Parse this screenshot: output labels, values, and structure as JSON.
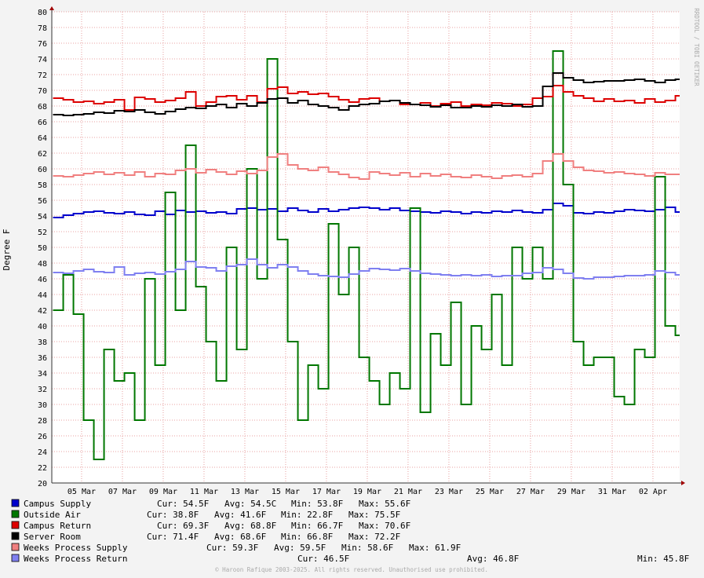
{
  "chart_data": {
    "type": "line",
    "step": true,
    "y_label": "Degree F",
    "watermark": "RRDTOOL / TOBI OETIKER",
    "footer": "© Haroon Rafique 2003-2025. All rights reserved. Unauthorised use prohibited.",
    "xlim": [
      3.54,
      34.31
    ],
    "ylim": [
      20,
      80
    ],
    "yticks": [
      20,
      22,
      24,
      26,
      28,
      30,
      32,
      34,
      36,
      38,
      40,
      42,
      44,
      46,
      48,
      50,
      52,
      54,
      56,
      58,
      60,
      62,
      64,
      66,
      68,
      70,
      72,
      74,
      76,
      78,
      80
    ],
    "xticks": [
      {
        "value": 5,
        "label": "05 Mar"
      },
      {
        "value": 7,
        "label": "07 Mar"
      },
      {
        "value": 9,
        "label": "09 Mar"
      },
      {
        "value": 11,
        "label": "11 Mar"
      },
      {
        "value": 13,
        "label": "13 Mar"
      },
      {
        "value": 15,
        "label": "15 Mar"
      },
      {
        "value": 17,
        "label": "17 Mar"
      },
      {
        "value": 19,
        "label": "19 Mar"
      },
      {
        "value": 21,
        "label": "21 Mar"
      },
      {
        "value": 23,
        "label": "23 Mar"
      },
      {
        "value": 25,
        "label": "25 Mar"
      },
      {
        "value": 27,
        "label": "27 Mar"
      },
      {
        "value": 29,
        "label": "29 Mar"
      },
      {
        "value": 31,
        "label": "31 Mar"
      },
      {
        "value": 33,
        "label": "02 Apr"
      }
    ],
    "grid": true,
    "x": [
      3.6,
      4.1,
      4.6,
      5.1,
      5.6,
      6.1,
      6.6,
      7.1,
      7.6,
      8.1,
      8.6,
      9.1,
      9.6,
      10.1,
      10.6,
      11.1,
      11.6,
      12.1,
      12.6,
      13.1,
      13.6,
      14.1,
      14.6,
      15.1,
      15.6,
      16.1,
      16.6,
      17.1,
      17.6,
      18.1,
      18.6,
      19.1,
      19.6,
      20.1,
      20.6,
      21.1,
      21.6,
      22.1,
      22.6,
      23.1,
      23.6,
      24.1,
      24.6,
      25.1,
      25.6,
      26.1,
      26.6,
      27.1,
      27.6,
      28.1,
      28.6,
      29.1,
      29.6,
      30.1,
      30.6,
      31.1,
      31.6,
      32.1,
      32.6,
      33.1,
      33.6,
      34.1
    ],
    "series": [
      {
        "name": "Campus Supply",
        "color": "#0000cc",
        "stats": [
          "Cur: 54.5F",
          "Avg: 54.5C",
          "Min: 53.8F",
          "Max: 55.6F"
        ],
        "values": [
          53.8,
          54.1,
          54.3,
          54.5,
          54.6,
          54.4,
          54.3,
          54.5,
          54.2,
          54.1,
          54.6,
          54.2,
          54.7,
          54.5,
          54.6,
          54.4,
          54.5,
          54.3,
          54.9,
          55.0,
          54.8,
          54.9,
          54.6,
          55.0,
          54.7,
          54.5,
          54.9,
          54.6,
          54.8,
          55.0,
          55.1,
          55.0,
          54.8,
          55.0,
          54.7,
          54.6,
          54.5,
          54.4,
          54.6,
          54.5,
          54.3,
          54.5,
          54.4,
          54.6,
          54.5,
          54.7,
          54.5,
          54.4,
          54.8,
          55.6,
          55.3,
          54.4,
          54.3,
          54.5,
          54.4,
          54.6,
          54.8,
          54.7,
          54.6,
          54.8,
          55.1,
          54.5
        ]
      },
      {
        "name": "Outside Air",
        "color": "#007700",
        "stats": [
          "Cur: 38.8F",
          "Avg: 41.6F",
          "Min: 22.8F",
          "Max: 75.5F"
        ],
        "values": [
          42,
          46.5,
          41.5,
          28,
          23,
          37,
          33,
          34,
          28,
          46,
          35,
          57,
          42,
          63,
          45,
          38,
          33,
          50,
          37,
          60,
          46,
          74,
          51,
          38,
          28,
          35,
          32,
          53,
          44,
          50,
          36,
          33,
          30,
          34,
          32,
          55,
          29,
          39,
          35,
          43,
          30,
          40,
          37,
          44,
          35,
          50,
          46,
          50,
          46,
          75,
          58,
          38,
          35,
          36,
          36,
          31,
          30,
          37,
          36,
          59,
          40,
          38.8
        ]
      },
      {
        "name": "Campus Return",
        "color": "#dd0000",
        "stats": [
          "Cur: 69.3F",
          "Avg: 68.8F",
          "Min: 66.7F",
          "Max: 70.6F"
        ],
        "values": [
          69,
          68.8,
          68.5,
          68.6,
          68.3,
          68.5,
          68.8,
          67.5,
          69.1,
          68.9,
          68.5,
          68.7,
          69.0,
          69.8,
          68.0,
          68.5,
          69.2,
          69.3,
          68.8,
          69.3,
          68.5,
          70.2,
          70.4,
          69.6,
          69.8,
          69.5,
          69.6,
          69.2,
          68.8,
          68.5,
          68.9,
          69.0,
          68.6,
          68.7,
          68.2,
          68.2,
          68.4,
          68.0,
          68.3,
          68.5,
          68.0,
          68.2,
          68.1,
          68.4,
          68.3,
          68.0,
          68.2,
          69.0,
          69.2,
          70.6,
          69.8,
          69.3,
          69.0,
          68.6,
          68.9,
          68.6,
          68.7,
          68.4,
          68.9,
          68.5,
          68.7,
          69.3
        ]
      },
      {
        "name": "Server Room",
        "color": "#000000",
        "stats": [
          "Cur: 71.4F",
          "Avg: 68.6F",
          "Min: 66.8F",
          "Max: 72.2F"
        ],
        "values": [
          66.9,
          66.8,
          66.9,
          67.0,
          67.2,
          67.1,
          67.4,
          67.3,
          67.5,
          67.2,
          67.0,
          67.3,
          67.6,
          67.8,
          67.7,
          68.0,
          68.2,
          67.8,
          68.3,
          68.0,
          68.4,
          68.9,
          69.0,
          68.4,
          68.7,
          68.2,
          68.0,
          67.8,
          67.5,
          68.0,
          68.2,
          68.3,
          68.6,
          68.7,
          68.4,
          68.2,
          68.1,
          67.9,
          68.1,
          67.8,
          67.8,
          68.0,
          67.9,
          68.1,
          68.0,
          68.2,
          67.9,
          68.0,
          70.5,
          72.2,
          71.6,
          71.3,
          71.0,
          71.1,
          71.2,
          71.2,
          71.3,
          71.4,
          71.2,
          71.0,
          71.3,
          71.4
        ]
      },
      {
        "name": "Weeks Process Supply",
        "color": "#f08080",
        "stats": [
          "Cur: 59.3F",
          "Avg: 59.5F",
          "Min: 58.6F",
          "Max: 61.9F"
        ],
        "values": [
          59.1,
          59.0,
          59.2,
          59.4,
          59.6,
          59.3,
          59.5,
          59.2,
          59.6,
          59.0,
          59.4,
          59.3,
          59.8,
          60.0,
          59.5,
          59.9,
          59.6,
          59.3,
          59.7,
          59.4,
          59.8,
          61.5,
          61.9,
          60.5,
          60.0,
          59.8,
          60.2,
          59.6,
          59.3,
          58.9,
          58.7,
          59.6,
          59.4,
          59.2,
          59.5,
          59.0,
          59.4,
          59.1,
          59.3,
          59.0,
          58.9,
          59.2,
          59.0,
          58.8,
          59.1,
          59.2,
          59.0,
          59.4,
          61.0,
          61.9,
          61.0,
          60.2,
          59.8,
          59.7,
          59.5,
          59.6,
          59.4,
          59.3,
          59.1,
          59.5,
          59.3,
          59.3
        ]
      },
      {
        "name": "Weeks Process Return",
        "color": "#8080f0",
        "stats": [
          "Cur: 46.5F",
          "Avg: 46.8F",
          "Min: 45.8F"
        ],
        "values": [
          46.8,
          46.7,
          47.0,
          47.2,
          46.9,
          46.8,
          47.5,
          46.5,
          46.7,
          46.8,
          46.6,
          46.9,
          47.2,
          48.2,
          47.5,
          47.4,
          47.0,
          47.6,
          47.8,
          48.5,
          47.8,
          47.4,
          47.8,
          47.5,
          47.0,
          46.6,
          46.4,
          46.3,
          46.2,
          46.6,
          47.0,
          47.3,
          47.2,
          47.1,
          47.3,
          47.0,
          46.7,
          46.6,
          46.5,
          46.4,
          46.5,
          46.4,
          46.5,
          46.3,
          46.4,
          46.4,
          46.7,
          46.8,
          47.4,
          47.2,
          46.7,
          46.1,
          46.0,
          46.2,
          46.2,
          46.3,
          46.4,
          46.4,
          46.5,
          47.0,
          46.8,
          46.5
        ]
      }
    ]
  }
}
